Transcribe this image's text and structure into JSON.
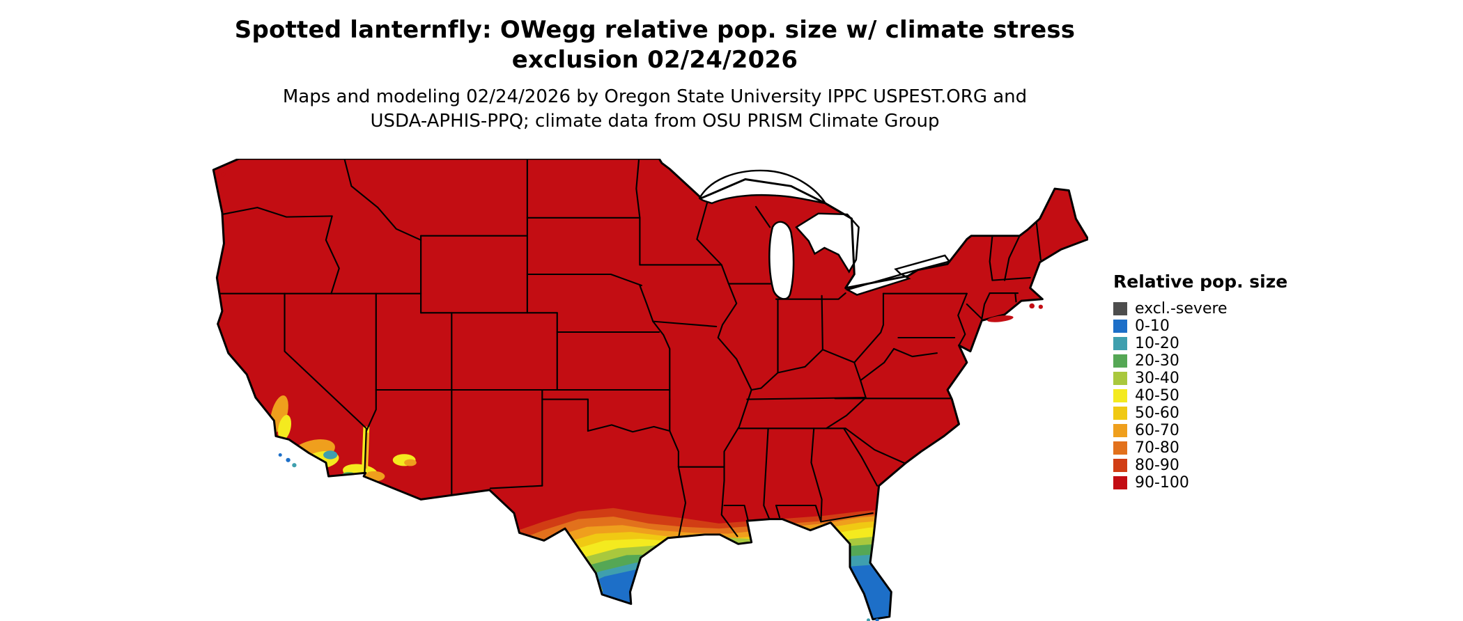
{
  "title": {
    "line1": "Spotted lanternfly: OWegg relative pop. size w/ climate stress",
    "line2": "exclusion 02/24/2026"
  },
  "subtitle": {
    "line1": "Maps and modeling 02/24/2026 by Oregon State University IPPC USPEST.ORG and",
    "line2": "USDA-APHIS-PPQ; climate data from OSU PRISM Climate Group"
  },
  "legend": {
    "title": "Relative pop. size",
    "items": [
      {
        "label": "excl.-severe",
        "color": "#4d4d4d"
      },
      {
        "label": "0-10",
        "color": "#1d6fc8"
      },
      {
        "label": "10-20",
        "color": "#3f9fae"
      },
      {
        "label": "20-30",
        "color": "#55a755"
      },
      {
        "label": "30-40",
        "color": "#a9c83d"
      },
      {
        "label": "40-50",
        "color": "#f4ea1f"
      },
      {
        "label": "50-60",
        "color": "#f0c913"
      },
      {
        "label": "60-70",
        "color": "#ef9f1d"
      },
      {
        "label": "70-80",
        "color": "#e2711c"
      },
      {
        "label": "80-90",
        "color": "#d13d14"
      },
      {
        "label": "90-100",
        "color": "#c30d13"
      }
    ]
  },
  "map": {
    "region": "Contiguous United States with state boundaries",
    "type": "gridded choropleth of relative population size",
    "dominant_class": "90-100",
    "gradient_regions": [
      "southern Texas",
      "Gulf Coast",
      "Florida peninsula",
      "southern California",
      "southwestern Arizona"
    ]
  }
}
